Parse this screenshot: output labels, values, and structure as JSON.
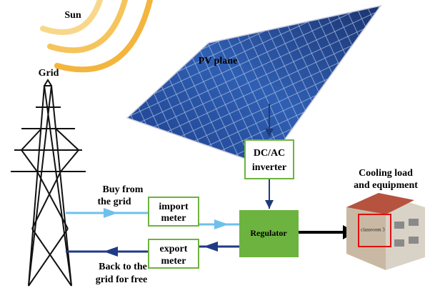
{
  "labels": {
    "sun": "Sun",
    "grid": "Grid",
    "pv_plane": "PV plane",
    "inverter": [
      "DC/AC",
      "inverter"
    ],
    "cooling": [
      "Cooling load",
      "and equipment"
    ],
    "buy": [
      "Buy from",
      "the grid"
    ],
    "import_meter": [
      "import",
      "meter"
    ],
    "export_meter": [
      "export",
      "meter"
    ],
    "back": [
      "Back to the",
      "grid for free"
    ],
    "regulator": "Regulator",
    "classroom": "classroom 3"
  }
}
